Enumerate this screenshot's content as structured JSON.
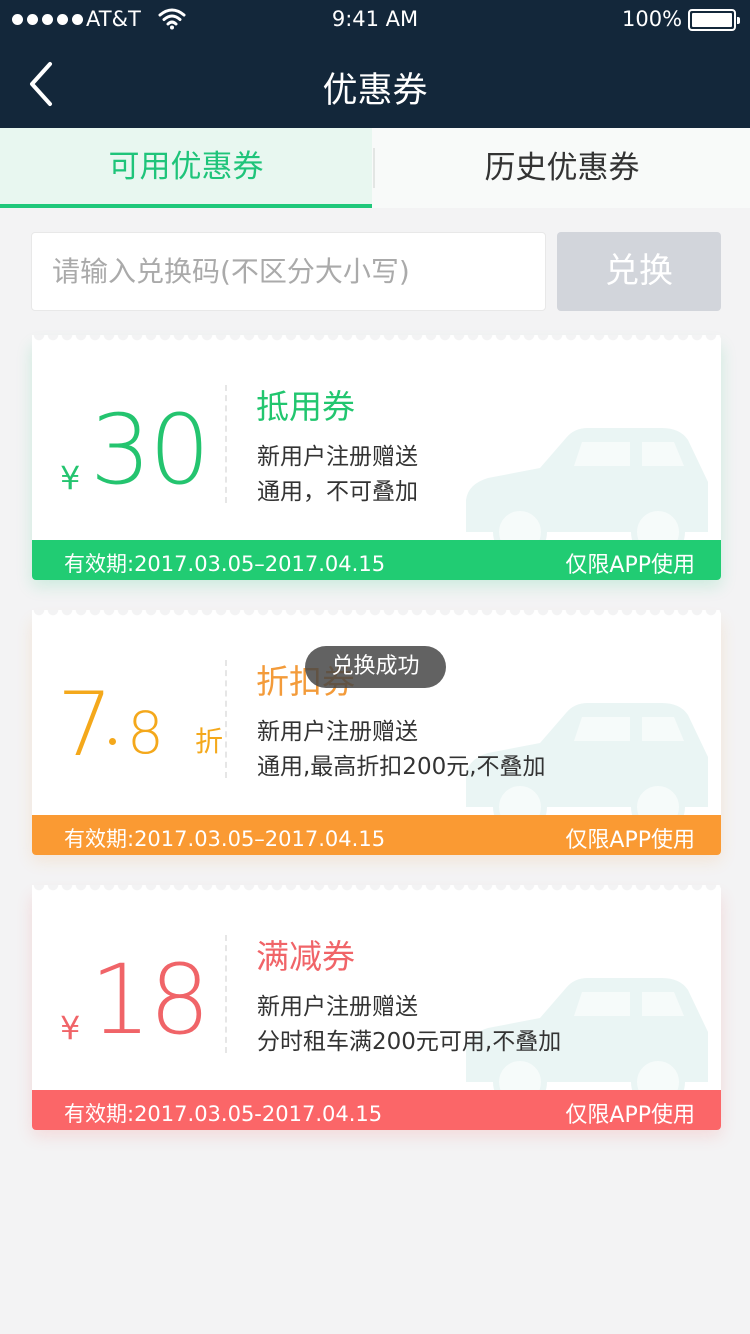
{
  "status_bar": {
    "carrier": "AT&T",
    "time": "9:41 AM",
    "battery": "100%"
  },
  "nav": {
    "title": "优惠券",
    "back_icon": "chevron-left-icon"
  },
  "tabs": [
    {
      "label": "可用优惠券",
      "active": true
    },
    {
      "label": "历史优惠券",
      "active": false
    }
  ],
  "redeem": {
    "placeholder": "请输入兑换码(不区分大小写)",
    "button_label": "兑换"
  },
  "coupons": [
    {
      "color": "#21cc73",
      "currency": "¥",
      "amount": "30",
      "title": "抵用券",
      "desc_line1": "新用户注册赠送",
      "desc_line2": "通用，不可叠加",
      "validity": "有效期:2017.03.05–2017.04.15",
      "scope": "仅限APP使用"
    },
    {
      "color": "#fa9a33",
      "amount_int": "7",
      "amount_dec": "8",
      "unit": "折",
      "title": "折扣券",
      "desc_line1": "新用户注册赠送",
      "desc_line2": "通用,最高折扣200元,不叠加",
      "validity": "有效期:2017.03.05–2017.04.15",
      "scope": "仅限APP使用"
    },
    {
      "color": "#fb6668",
      "currency": "¥",
      "amount": "18",
      "title": "满减券",
      "desc_line1": "新用户注册赠送",
      "desc_line2": "分时租车满200元可用,不叠加",
      "validity": "有效期:2017.03.05-2017.04.15",
      "scope": "仅限APP使用"
    }
  ],
  "toast": "兑换成功",
  "icons": {
    "car": "car-icon",
    "wifi": "wifi-icon",
    "battery": "battery-icon",
    "signal": "signal-icon"
  }
}
